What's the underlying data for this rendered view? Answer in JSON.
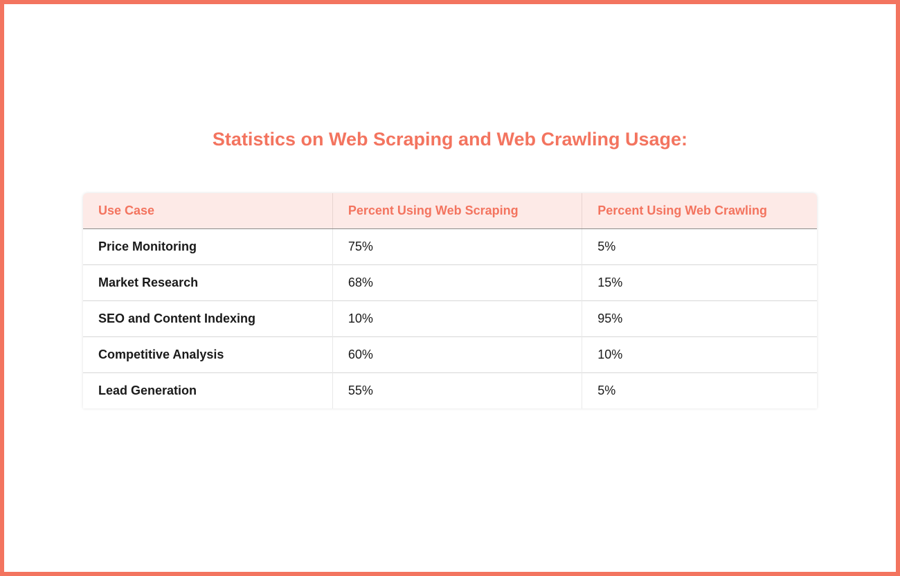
{
  "title": "Statistics on Web Scraping and Web Crawling Usage:",
  "colors": {
    "accent": "#f3745f",
    "header_bg": "#fdeae7",
    "border_frame": "#f3745f",
    "row_border": "#d6d6d6",
    "header_bottom_border": "#8a8a8a",
    "text": "#1a1a1a",
    "background": "#ffffff"
  },
  "table": {
    "columns": [
      {
        "key": "use_case",
        "label": "Use Case",
        "width_pct": 34,
        "align": "left"
      },
      {
        "key": "scraping",
        "label": "Percent Using Web Scraping",
        "width_pct": 34,
        "align": "left"
      },
      {
        "key": "crawling",
        "label": "Percent Using Web Crawling",
        "width_pct": 32,
        "align": "left"
      }
    ],
    "rows": [
      {
        "use_case": "Price Monitoring",
        "scraping": "75%",
        "crawling": "5%"
      },
      {
        "use_case": "Market Research",
        "scraping": "68%",
        "crawling": "15%"
      },
      {
        "use_case": "SEO and Content Indexing",
        "scraping": "10%",
        "crawling": "95%"
      },
      {
        "use_case": "Competitive Analysis",
        "scraping": "60%",
        "crawling": "10%"
      },
      {
        "use_case": "Lead Generation",
        "scraping": "55%",
        "crawling": "5%"
      }
    ]
  },
  "typography": {
    "title_fontsize": 27,
    "title_weight": 700,
    "header_fontsize": 18,
    "header_weight": 600,
    "cell_fontsize": 18,
    "first_col_weight": 700
  }
}
